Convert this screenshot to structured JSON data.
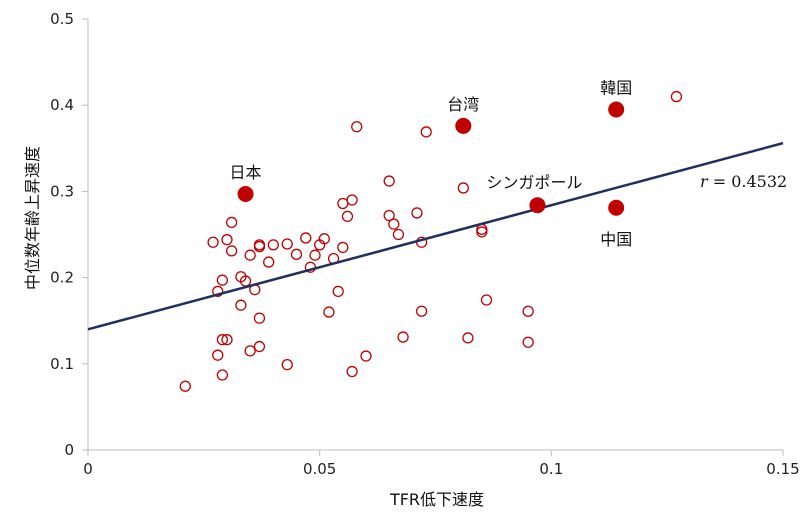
{
  "chart_data": {
    "type": "scatter",
    "xlabel": "TFR低下速度",
    "ylabel": "中位数年齢上昇速度",
    "xlim": [
      0,
      0.15
    ],
    "ylim": [
      0,
      0.5
    ],
    "x_ticks": [
      "0",
      "0.05",
      "0.1",
      "0.15"
    ],
    "y_ticks": [
      "0",
      "0.1",
      "0.2",
      "0.3",
      "0.4",
      "0.5"
    ],
    "grid": false,
    "marker_color": "#c00000",
    "line_color": "#1f2f5e",
    "correlation_label": {
      "r_symbol": "r",
      "value_text": " = 0.4532"
    },
    "trendline": {
      "x": [
        0,
        0.15
      ],
      "y": [
        0.14,
        0.356
      ]
    },
    "highlighted": [
      {
        "label": "日本",
        "x": 0.034,
        "y": 0.297
      },
      {
        "label": "台湾",
        "x": 0.081,
        "y": 0.376
      },
      {
        "label": "韓国",
        "x": 0.114,
        "y": 0.395
      },
      {
        "label": "シンガポール",
        "x": 0.097,
        "y": 0.284
      },
      {
        "label": "中国",
        "x": 0.114,
        "y": 0.281
      }
    ],
    "points": [
      [
        0.021,
        0.074
      ],
      [
        0.027,
        0.241
      ],
      [
        0.028,
        0.184
      ],
      [
        0.028,
        0.11
      ],
      [
        0.029,
        0.128
      ],
      [
        0.029,
        0.197
      ],
      [
        0.029,
        0.087
      ],
      [
        0.03,
        0.244
      ],
      [
        0.03,
        0.128
      ],
      [
        0.031,
        0.231
      ],
      [
        0.031,
        0.264
      ],
      [
        0.033,
        0.201
      ],
      [
        0.033,
        0.168
      ],
      [
        0.034,
        0.196
      ],
      [
        0.035,
        0.115
      ],
      [
        0.035,
        0.226
      ],
      [
        0.036,
        0.186
      ],
      [
        0.037,
        0.153
      ],
      [
        0.037,
        0.238
      ],
      [
        0.037,
        0.236
      ],
      [
        0.037,
        0.12
      ],
      [
        0.039,
        0.218
      ],
      [
        0.04,
        0.238
      ],
      [
        0.043,
        0.239
      ],
      [
        0.043,
        0.099
      ],
      [
        0.045,
        0.227
      ],
      [
        0.047,
        0.246
      ],
      [
        0.048,
        0.212
      ],
      [
        0.049,
        0.226
      ],
      [
        0.05,
        0.238
      ],
      [
        0.051,
        0.245
      ],
      [
        0.052,
        0.16
      ],
      [
        0.053,
        0.222
      ],
      [
        0.054,
        0.184
      ],
      [
        0.055,
        0.286
      ],
      [
        0.055,
        0.235
      ],
      [
        0.056,
        0.271
      ],
      [
        0.057,
        0.29
      ],
      [
        0.058,
        0.375
      ],
      [
        0.057,
        0.091
      ],
      [
        0.06,
        0.109
      ],
      [
        0.065,
        0.312
      ],
      [
        0.065,
        0.272
      ],
      [
        0.066,
        0.262
      ],
      [
        0.067,
        0.25
      ],
      [
        0.068,
        0.131
      ],
      [
        0.071,
        0.275
      ],
      [
        0.072,
        0.241
      ],
      [
        0.072,
        0.161
      ],
      [
        0.073,
        0.369
      ],
      [
        0.081,
        0.304
      ],
      [
        0.082,
        0.13
      ],
      [
        0.085,
        0.256
      ],
      [
        0.085,
        0.253
      ],
      [
        0.086,
        0.174
      ],
      [
        0.095,
        0.125
      ],
      [
        0.095,
        0.161
      ],
      [
        0.127,
        0.41
      ]
    ]
  }
}
